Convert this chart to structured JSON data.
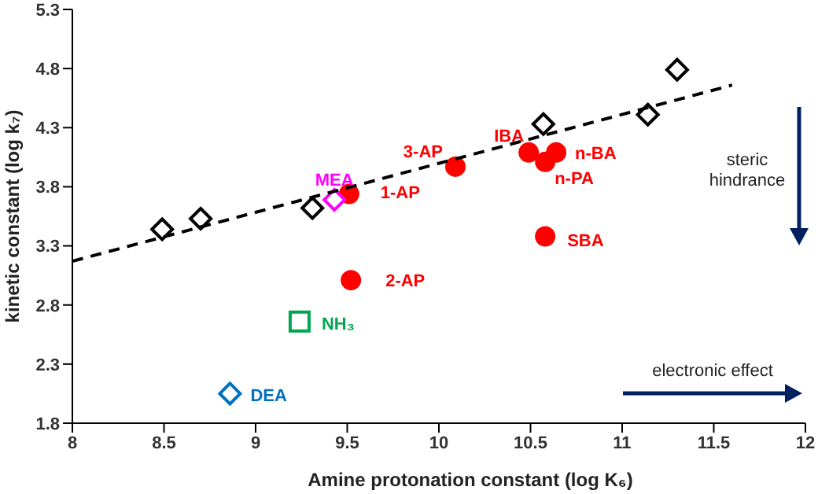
{
  "chart_data": {
    "type": "scatter",
    "xlabel": "Amine protonation  constant (log K₆)",
    "ylabel": "kinetic constant (log k₇)",
    "xlim": [
      8,
      12
    ],
    "xticks": [
      8,
      8.5,
      9,
      9.5,
      10,
      10.5,
      11,
      11.5,
      12
    ],
    "ylim": [
      1.8,
      5.3
    ],
    "yticks": [
      1.8,
      2.3,
      2.8,
      3.3,
      3.8,
      4.3,
      4.8,
      5.3
    ],
    "series": [
      {
        "marker": "diamond",
        "color": "#000000",
        "x": [
          8.49,
          8.7,
          9.31,
          10.57,
          11.14,
          11.3
        ],
        "values": [
          3.44,
          3.53,
          3.62,
          4.33,
          4.41,
          4.79
        ]
      },
      {
        "marker": "circle",
        "color": "#ff0000",
        "x": [
          9.51,
          9.52,
          10.09,
          10.49,
          10.58,
          10.64,
          10.58
        ],
        "values": [
          3.74,
          3.01,
          3.97,
          4.09,
          4.01,
          4.09,
          3.38
        ]
      },
      {
        "name": "MEA",
        "marker": "diamond",
        "color": "#ff00ff",
        "x": [
          9.43
        ],
        "values": [
          3.69
        ]
      },
      {
        "name": "NH₃",
        "marker": "square",
        "color": "#00a651",
        "x": [
          9.24
        ],
        "values": [
          2.66
        ]
      },
      {
        "name": "DEA",
        "marker": "diamond",
        "color": "#0070c0",
        "x": [
          8.86
        ],
        "values": [
          2.05
        ]
      },
      {
        "type": "line",
        "marker": "none",
        "line_style": "dashed",
        "color": "#000000",
        "x": [
          8,
          11.6
        ],
        "values": [
          3.17,
          4.66
        ]
      }
    ],
    "annotations": [
      {
        "text": "1-AP",
        "x": 9.51,
        "y": 3.74
      },
      {
        "text": "2-AP",
        "x": 9.52,
        "y": 3.01
      },
      {
        "text": "3-AP",
        "x": 10.09,
        "y": 3.97
      },
      {
        "text": "IBA",
        "x": 10.49,
        "y": 4.09
      },
      {
        "text": "n-PA",
        "x": 10.58,
        "y": 4.01
      },
      {
        "text": "n-BA",
        "x": 10.64,
        "y": 4.09
      },
      {
        "text": "SBA",
        "x": 10.58,
        "y": 3.38
      },
      "steric hindrance",
      "electronic effect"
    ]
  }
}
